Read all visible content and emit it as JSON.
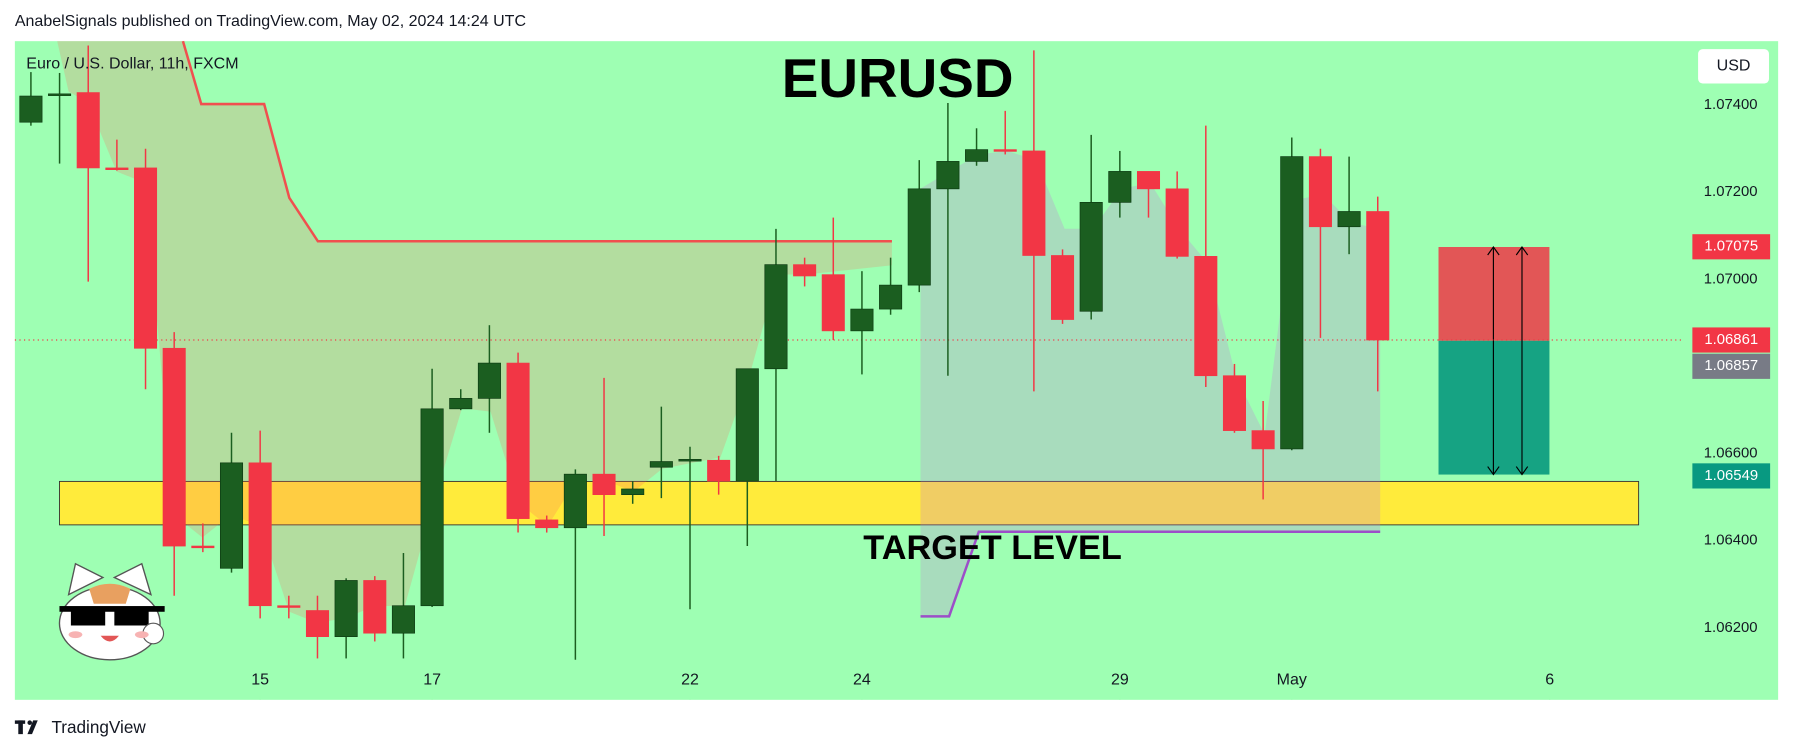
{
  "header": {
    "byline": "AnabelSignals published on TradingView.com, May 02, 2024 14:24 UTC"
  },
  "chart_data": {
    "type": "candlestick",
    "symbol": "Euro / U.S. Dollar, 11h, FXCM",
    "title": "EURUSD",
    "annotation": "TARGET LEVEL",
    "currency": "USD",
    "up_color": "#1b5e20",
    "down_color": "#f23645",
    "open": [
      1.07361,
      1.07424,
      1.07429,
      1.07256,
      1.07256,
      1.06842,
      1.06388,
      1.06337,
      1.06579,
      1.06251,
      1.0624,
      1.0618,
      1.06309,
      1.06188,
      1.06251,
      1.06703,
      1.06727,
      1.06808,
      1.06448,
      1.0643,
      1.06553,
      1.06506,
      1.06569,
      1.06585,
      1.06585,
      1.06537,
      1.06795,
      1.07034,
      1.07011,
      1.06882,
      1.06932,
      1.06987,
      1.07208,
      1.07271,
      1.07298,
      1.07295,
      1.07055,
      1.06927,
      1.07177,
      1.07248,
      1.07208,
      1.07053,
      1.06779,
      1.06653,
      1.06611,
      1.07282,
      1.07121,
      1.07156
    ],
    "high": [
      1.07476,
      1.07474,
      1.07537,
      1.07321,
      1.073,
      1.06879,
      1.0644,
      1.06648,
      1.06653,
      1.06274,
      1.06274,
      1.06314,
      1.06319,
      1.06372,
      1.06795,
      1.06748,
      1.06895,
      1.06832,
      1.06458,
      1.06564,
      1.06774,
      1.06537,
      1.06708,
      1.06616,
      1.06595,
      1.06795,
      1.07116,
      1.0705,
      1.07142,
      1.07019,
      1.0705,
      1.07274,
      1.07405,
      1.07347,
      1.07387,
      1.07526,
      1.07069,
      1.07332,
      1.07295,
      1.07248,
      1.07248,
      1.07353,
      1.06806,
      1.06721,
      1.07326,
      1.073,
      1.07282,
      1.0719
    ],
    "low": [
      1.07353,
      1.07266,
      1.06995,
      1.0725,
      1.06748,
      1.06274,
      1.06374,
      1.06327,
      1.06222,
      1.06222,
      1.0613,
      1.0613,
      1.06169,
      1.0613,
      1.06248,
      1.067,
      1.06648,
      1.06419,
      1.06419,
      1.06127,
      1.06411,
      1.06485,
      1.06498,
      1.06243,
      1.06506,
      1.06388,
      1.06537,
      1.06984,
      1.06861,
      1.06782,
      1.06919,
      1.06971,
      1.06779,
      1.07261,
      1.07287,
      1.06743,
      1.06898,
      1.06908,
      1.07142,
      1.07142,
      1.07048,
      1.06753,
      1.06648,
      1.06495,
      1.06608,
      1.06866,
      1.07058,
      1.06743
    ],
    "close": [
      1.07421,
      1.07426,
      1.07256,
      1.07253,
      1.06842,
      1.06388,
      1.06385,
      1.06579,
      1.06251,
      1.06248,
      1.0618,
      1.06309,
      1.06188,
      1.06251,
      1.06703,
      1.06727,
      1.06808,
      1.06451,
      1.0643,
      1.06553,
      1.06506,
      1.06519,
      1.06582,
      1.06587,
      1.06537,
      1.06795,
      1.07034,
      1.07008,
      1.06882,
      1.06932,
      1.06987,
      1.07208,
      1.07271,
      1.07298,
      1.07295,
      1.07055,
      1.06908,
      1.07177,
      1.07248,
      1.07208,
      1.07053,
      1.06779,
      1.06653,
      1.06611,
      1.07282,
      1.07121,
      1.07156,
      1.06861
    ],
    "xlim": [
      -0.56,
      57.66
    ],
    "xticks": [
      {
        "value": 8,
        "label": "15"
      },
      {
        "value": 14,
        "label": "17"
      },
      {
        "value": 23,
        "label": "22"
      },
      {
        "value": 29,
        "label": "24"
      },
      {
        "value": 38,
        "label": "29"
      },
      {
        "value": 44,
        "label": "May"
      },
      {
        "value": 53,
        "label": "6"
      }
    ],
    "ylim": [
      1.06035,
      1.07547
    ],
    "yticks": [
      {
        "value": 1.074,
        "label": "1.07400"
      },
      {
        "value": 1.072,
        "label": "1.07200"
      },
      {
        "value": 1.07,
        "label": "1.07000"
      },
      {
        "value": 1.066,
        "label": "1.06600"
      },
      {
        "value": 1.064,
        "label": "1.06400"
      },
      {
        "value": 1.062,
        "label": "1.06200"
      }
    ],
    "price_labels": [
      {
        "value": 1.07075,
        "color": "#f23645"
      },
      {
        "value": 1.06861,
        "color": "#f23645"
      },
      {
        "value": 1.06857,
        "color": "#787b86"
      },
      {
        "value": 1.06549,
        "color": "#089981"
      }
    ]
  },
  "footer": {
    "brand": "TradingView"
  }
}
